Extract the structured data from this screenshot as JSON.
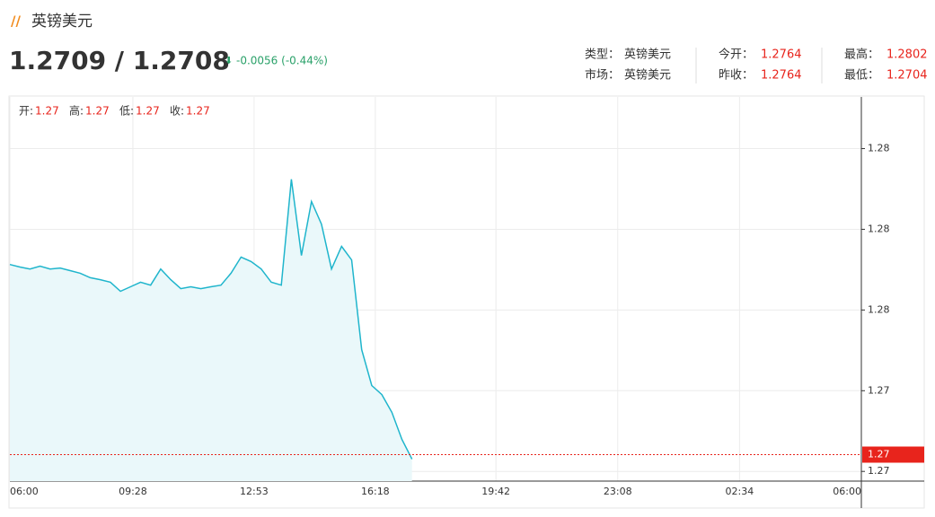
{
  "header": {
    "name": "英镑美元",
    "price": "1.2709 / 1.2708",
    "change": "-0.0056 (-0.44%)",
    "info": [
      {
        "label": "类型：",
        "value": "英镑美元"
      },
      {
        "label": "今开：",
        "value": "1.2764"
      },
      {
        "label": "最高：",
        "value": "1.2802"
      },
      {
        "label": "市场：",
        "value": "英镑美元"
      },
      {
        "label": "昨收：",
        "value": "1.2764"
      },
      {
        "label": "最低：",
        "value": "1.2704"
      }
    ]
  },
  "ohlc": [
    {
      "label": "开:",
      "value": "1.27"
    },
    {
      "label": "高:",
      "value": "1.27"
    },
    {
      "label": "低:",
      "value": "1.27"
    },
    {
      "label": "收:",
      "value": "1.27"
    }
  ],
  "chart_data": {
    "type": "area",
    "color": "#1fb5cc",
    "fill": "#eaf8fa",
    "grid": true,
    "xlim": [
      "06:00",
      "06:00"
    ],
    "xticks": [
      "06:00",
      "09:28",
      "12:53",
      "16:18",
      "19:42",
      "23:08",
      "02:34",
      "06:00"
    ],
    "ylim": [
      1.2697,
      1.2816
    ],
    "yticks": [
      {
        "value": 1.27,
        "label": "1.27"
      },
      {
        "value": 1.2725,
        "label": "1.27"
      },
      {
        "value": 1.275,
        "label": "1.28"
      },
      {
        "value": 1.2775,
        "label": "1.28"
      },
      {
        "value": 1.28,
        "label": "1.28"
      }
    ],
    "current": {
      "value": 1.27052,
      "label": "1.27",
      "color": "#e8241c"
    },
    "x": [
      "06:00",
      "06:17",
      "06:34",
      "06:51",
      "07:08",
      "07:25",
      "07:42",
      "07:59",
      "08:16",
      "08:33",
      "08:50",
      "09:07",
      "09:24",
      "09:41",
      "09:58",
      "10:15",
      "10:32",
      "10:49",
      "11:06",
      "11:23",
      "11:40",
      "11:57",
      "12:14",
      "12:31",
      "12:48",
      "13:05",
      "13:22",
      "13:39",
      "13:56",
      "14:13",
      "14:30",
      "14:47",
      "15:04",
      "15:21",
      "15:38",
      "15:55",
      "16:12",
      "16:29",
      "16:46",
      "17:03",
      "17:20"
    ],
    "values": [
      1.27641,
      1.27633,
      1.27627,
      1.27636,
      1.27627,
      1.2763,
      1.27622,
      1.27614,
      1.276,
      1.27594,
      1.27586,
      1.27558,
      1.27572,
      1.27586,
      1.27577,
      1.27627,
      1.27594,
      1.27566,
      1.27572,
      1.27566,
      1.27572,
      1.27577,
      1.27614,
      1.27664,
      1.2765,
      1.27627,
      1.27586,
      1.27577,
      1.27905,
      1.27669,
      1.27836,
      1.27766,
      1.27627,
      1.27697,
      1.27655,
      1.27377,
      1.27266,
      1.27238,
      1.27183,
      1.27099,
      1.27038
    ]
  }
}
